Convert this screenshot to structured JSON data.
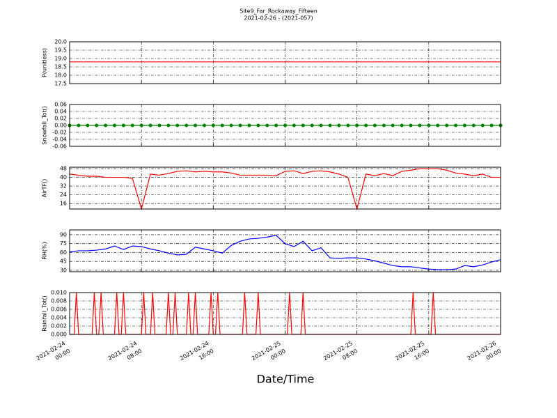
{
  "title": "Site9_Far_Rockaway_Fifteen",
  "subtitle": "2021-02-26 - (2021-057)",
  "x_axis": {
    "label": "Date/Time",
    "xlim": [
      "2021-02-24 00:00",
      "2021-02-26 00:00"
    ],
    "xticks": [
      {
        "value": "2021-02-24 00:00",
        "label": [
          "2021-02-24",
          "00:00"
        ]
      },
      {
        "value": "2021-02-24 08:00",
        "label": [
          "2021-02-24",
          "08:00"
        ]
      },
      {
        "value": "2021-02-24 16:00",
        "label": [
          "2021-02-24",
          "16:00"
        ]
      },
      {
        "value": "2021-02-25 00:00",
        "label": [
          "2021-02-25",
          "00:00"
        ]
      },
      {
        "value": "2021-02-25 08:00",
        "label": [
          "2021-02-25",
          "08:00"
        ]
      },
      {
        "value": "2021-02-25 16:00",
        "label": [
          "2021-02-25",
          "16:00"
        ]
      },
      {
        "value": "2021-02-26 00:00",
        "label": [
          "2021-02-26",
          "00:00"
        ]
      }
    ]
  },
  "chart_data": [
    {
      "type": "line",
      "ylabel": "P(unitless)",
      "ylim": [
        17.5,
        20
      ],
      "grid": true,
      "yticks": [
        17.5,
        {
          "value": 18,
          "label": "18.0"
        },
        18.5,
        {
          "value": 19,
          "label": "19.0"
        },
        19.5,
        {
          "value": 20,
          "label": "20.0"
        }
      ],
      "x": [
        "2021-02-24 00:00",
        "2021-02-26 00:00"
      ],
      "series": [
        {
          "color": "#ff0000",
          "values": [
            18.8,
            18.8
          ]
        }
      ]
    },
    {
      "type": "line",
      "ylabel": "Snowfall_Tot()",
      "ylim": [
        -0.06,
        0.06
      ],
      "grid": true,
      "markers": true,
      "yticks": [
        -0.06,
        -0.04,
        -0.02,
        {
          "value": 0,
          "label": "0.00"
        },
        0.02,
        0.04,
        0.06
      ],
      "x": [
        "2021-02-24 00:00",
        "2021-02-24 01:00",
        "2021-02-24 02:00",
        "2021-02-24 03:00",
        "2021-02-24 04:00",
        "2021-02-24 05:00",
        "2021-02-24 06:00",
        "2021-02-24 07:00",
        "2021-02-24 08:00",
        "2021-02-24 09:00",
        "2021-02-24 10:00",
        "2021-02-24 11:00",
        "2021-02-24 12:00",
        "2021-02-24 13:00",
        "2021-02-24 14:00",
        "2021-02-24 15:00",
        "2021-02-24 16:00",
        "2021-02-24 17:00",
        "2021-02-24 18:00",
        "2021-02-24 19:00",
        "2021-02-24 20:00",
        "2021-02-24 21:00",
        "2021-02-24 22:00",
        "2021-02-24 23:00",
        "2021-02-25 00:00",
        "2021-02-25 01:00",
        "2021-02-25 02:00",
        "2021-02-25 03:00",
        "2021-02-25 04:00",
        "2021-02-25 05:00",
        "2021-02-25 06:00",
        "2021-02-25 07:00",
        "2021-02-25 08:00",
        "2021-02-25 09:00",
        "2021-02-25 10:00",
        "2021-02-25 11:00",
        "2021-02-25 12:00",
        "2021-02-25 13:00",
        "2021-02-25 14:00",
        "2021-02-25 15:00",
        "2021-02-25 16:00",
        "2021-02-25 17:00",
        "2021-02-25 18:00",
        "2021-02-25 19:00",
        "2021-02-25 20:00",
        "2021-02-25 21:00",
        "2021-02-25 22:00",
        "2021-02-25 23:00",
        "2021-02-26 00:00"
      ],
      "series": [
        {
          "color": "#008000",
          "values": [
            0,
            0,
            0,
            0,
            0,
            0,
            0,
            0,
            0,
            0,
            0,
            0,
            0,
            0,
            0,
            0,
            0,
            0,
            0,
            0,
            0,
            0,
            0,
            0,
            0,
            0,
            0,
            0,
            0,
            0,
            0,
            0,
            0,
            0,
            0,
            0,
            0,
            0,
            0,
            0,
            0,
            0,
            0,
            0,
            0,
            0,
            0,
            0,
            0
          ]
        }
      ]
    },
    {
      "type": "line",
      "ylabel": "AirTF()",
      "ylim": [
        11,
        49.3
      ],
      "grid": true,
      "yticks": [
        16,
        24,
        32,
        40,
        48
      ],
      "x": [
        "2021-02-24 00:00",
        "2021-02-24 01:00",
        "2021-02-24 02:00",
        "2021-02-24 03:00",
        "2021-02-24 04:00",
        "2021-02-24 05:00",
        "2021-02-24 06:00",
        "2021-02-24 07:00",
        "2021-02-24 08:00",
        "2021-02-24 09:00",
        "2021-02-24 10:00",
        "2021-02-24 11:00",
        "2021-02-24 12:00",
        "2021-02-24 13:00",
        "2021-02-24 14:00",
        "2021-02-24 15:00",
        "2021-02-24 16:00",
        "2021-02-24 17:00",
        "2021-02-24 18:00",
        "2021-02-24 19:00",
        "2021-02-24 20:00",
        "2021-02-24 21:00",
        "2021-02-24 22:00",
        "2021-02-24 23:00",
        "2021-02-25 00:00",
        "2021-02-25 01:00",
        "2021-02-25 02:00",
        "2021-02-25 03:00",
        "2021-02-25 04:00",
        "2021-02-25 05:00",
        "2021-02-25 06:00",
        "2021-02-25 07:00",
        "2021-02-25 08:00",
        "2021-02-25 09:00",
        "2021-02-25 10:00",
        "2021-02-25 11:00",
        "2021-02-25 12:00",
        "2021-02-25 13:00",
        "2021-02-25 14:00",
        "2021-02-25 15:00",
        "2021-02-25 16:00",
        "2021-02-25 17:00",
        "2021-02-25 18:00",
        "2021-02-25 19:00",
        "2021-02-25 20:00",
        "2021-02-25 21:00",
        "2021-02-25 22:00",
        "2021-02-25 23:00",
        "2021-02-26 00:00"
      ],
      "series": [
        {
          "color": "#ff0000",
          "values": [
            43,
            42,
            41,
            41,
            40,
            40,
            40,
            39,
            11,
            43,
            42,
            43.5,
            45.5,
            46,
            45,
            45.5,
            45,
            45,
            44,
            42,
            42,
            42,
            42,
            41.5,
            45.5,
            46,
            43.5,
            45.5,
            46,
            45,
            43,
            40,
            11,
            43,
            41.5,
            43.5,
            41.5,
            45.5,
            46.5,
            48,
            48,
            48,
            46.5,
            44,
            43,
            41.5,
            43,
            40,
            40
          ]
        }
      ]
    },
    {
      "type": "line",
      "ylabel": "RH(%)",
      "ylim": [
        27.6,
        98.2
      ],
      "grid": true,
      "yticks": [
        30,
        45,
        60,
        75,
        90
      ],
      "x": [
        "2021-02-24 00:00",
        "2021-02-24 01:00",
        "2021-02-24 02:00",
        "2021-02-24 03:00",
        "2021-02-24 04:00",
        "2021-02-24 05:00",
        "2021-02-24 06:00",
        "2021-02-24 07:00",
        "2021-02-24 08:00",
        "2021-02-24 09:00",
        "2021-02-24 10:00",
        "2021-02-24 11:00",
        "2021-02-24 12:00",
        "2021-02-24 13:00",
        "2021-02-24 14:00",
        "2021-02-24 15:00",
        "2021-02-24 16:00",
        "2021-02-24 17:00",
        "2021-02-24 18:00",
        "2021-02-24 19:00",
        "2021-02-24 20:00",
        "2021-02-24 21:00",
        "2021-02-24 22:00",
        "2021-02-24 23:00",
        "2021-02-25 00:00",
        "2021-02-25 01:00",
        "2021-02-25 02:00",
        "2021-02-25 03:00",
        "2021-02-25 04:00",
        "2021-02-25 05:00",
        "2021-02-25 06:00",
        "2021-02-25 07:00",
        "2021-02-25 08:00",
        "2021-02-25 09:00",
        "2021-02-25 10:00",
        "2021-02-25 11:00",
        "2021-02-25 12:00",
        "2021-02-25 13:00",
        "2021-02-25 14:00",
        "2021-02-25 15:00",
        "2021-02-25 16:00",
        "2021-02-25 17:00",
        "2021-02-25 18:00",
        "2021-02-25 19:00",
        "2021-02-25 20:00",
        "2021-02-25 21:00",
        "2021-02-25 22:00",
        "2021-02-25 23:00",
        "2021-02-26 00:00"
      ],
      "series": [
        {
          "color": "#0000ff",
          "values": [
            61,
            63,
            63,
            64,
            66,
            71,
            65,
            71,
            70,
            66,
            63,
            59,
            56,
            57,
            69,
            66,
            63,
            59,
            72,
            79,
            83,
            84,
            86,
            89,
            75,
            70,
            79,
            63,
            68,
            51,
            50,
            51,
            51,
            49,
            46,
            42,
            38,
            36,
            36,
            34,
            32,
            31,
            31,
            32,
            38,
            36,
            39,
            44,
            48
          ]
        }
      ]
    },
    {
      "type": "line",
      "ylabel": "Rainfall_Tot()",
      "ylim": [
        0,
        0.01
      ],
      "grid": true,
      "yticks": [
        {
          "value": 0,
          "label": "0.000"
        },
        {
          "value": 0.002,
          "label": "0.002"
        },
        {
          "value": 0.004,
          "label": "0.004"
        },
        {
          "value": 0.006,
          "label": "0.006"
        },
        {
          "value": 0.008,
          "label": "0.008"
        },
        {
          "value": 0.01,
          "label": "0.010"
        }
      ],
      "x": [
        "2021-02-24 00:00",
        "2021-02-24 00:30",
        "2021-02-24 00:45",
        "2021-02-24 01:00",
        "2021-02-24 02:30",
        "2021-02-24 02:45",
        "2021-02-24 03:00",
        "2021-02-24 03:15",
        "2021-02-24 03:30",
        "2021-02-24 03:45",
        "2021-02-24 05:00",
        "2021-02-24 05:15",
        "2021-02-24 05:30",
        "2021-02-24 05:45",
        "2021-02-24 06:00",
        "2021-02-24 06:15",
        "2021-02-24 08:00",
        "2021-02-24 08:15",
        "2021-02-24 08:30",
        "2021-02-24 09:00",
        "2021-02-24 09:15",
        "2021-02-24 09:30",
        "2021-02-24 10:45",
        "2021-02-24 11:00",
        "2021-02-24 11:15",
        "2021-02-24 11:30",
        "2021-02-24 11:45",
        "2021-02-24 12:00",
        "2021-02-24 13:00",
        "2021-02-24 13:15",
        "2021-02-24 13:30",
        "2021-02-24 13:45",
        "2021-02-24 14:00",
        "2021-02-24 14:15",
        "2021-02-24 15:30",
        "2021-02-24 15:45",
        "2021-02-24 16:00",
        "2021-02-24 16:15",
        "2021-02-24 16:30",
        "2021-02-24 16:45",
        "2021-02-24 19:15",
        "2021-02-24 19:30",
        "2021-02-24 19:45",
        "2021-02-24 20:45",
        "2021-02-24 21:00",
        "2021-02-24 21:15",
        "2021-02-25 00:15",
        "2021-02-25 00:30",
        "2021-02-25 00:45",
        "2021-02-25 01:45",
        "2021-02-25 02:00",
        "2021-02-25 02:15",
        "2021-02-25 14:00",
        "2021-02-25 14:15",
        "2021-02-25 14:30",
        "2021-02-25 16:15",
        "2021-02-25 16:30",
        "2021-02-25 16:45",
        "2021-02-26 00:00"
      ],
      "series": [
        {
          "color": "#ff0000",
          "values": [
            0,
            0,
            0.01,
            0,
            0,
            0.01,
            0,
            0,
            0.01,
            0,
            0,
            0.01,
            0,
            0,
            0.01,
            0,
            0,
            0.01,
            0,
            0,
            0.01,
            0,
            0,
            0.01,
            0,
            0,
            0.01,
            0,
            0,
            0.01,
            0,
            0,
            0.01,
            0,
            0,
            0.01,
            0,
            0,
            0.01,
            0,
            0,
            0.01,
            0,
            0,
            0.01,
            0,
            0,
            0.01,
            0,
            0,
            0.01,
            0,
            0,
            0.01,
            0,
            0,
            0.01,
            0,
            0
          ]
        }
      ]
    }
  ]
}
